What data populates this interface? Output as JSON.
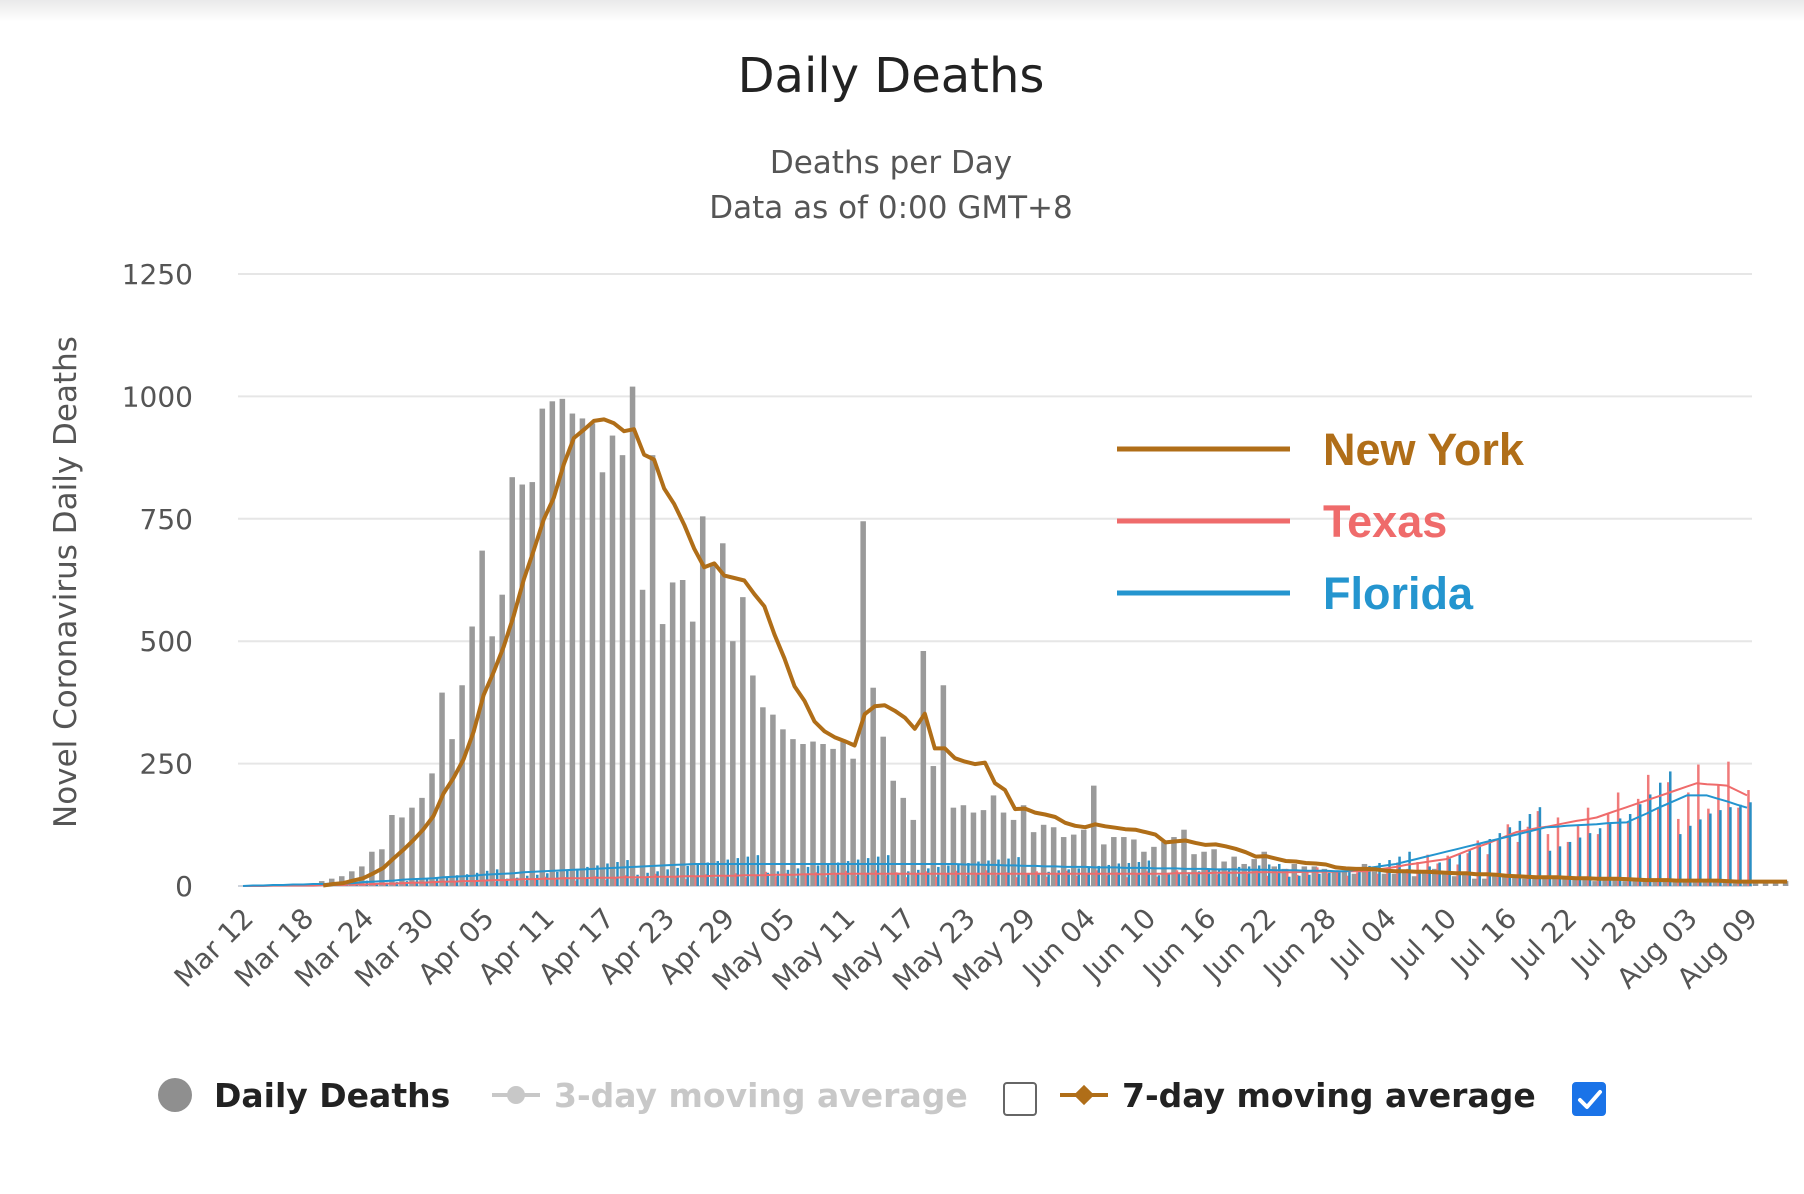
{
  "colors": {
    "bars_ny": "#9a9a9a",
    "bars_fl": "#2a8fc4",
    "bars_tx": "#f07a7a",
    "new_york": "#b06e18",
    "texas": "#ef6b6b",
    "florida": "#2495cf",
    "grid": "#e6e6e6",
    "disabled": "#c8c8c8"
  },
  "bottom_legend": {
    "daily_deaths": "Daily Deaths",
    "ma3": "3-day moving average",
    "ma7": "7-day moving average",
    "ma3_checked": false,
    "ma7_checked": true,
    "icons": {
      "daily_deaths": "circle-icon",
      "ma3": "line-circle-icon",
      "ma7": "line-diamond-icon",
      "checkbox": "checkbox-icon"
    }
  },
  "chart_data": {
    "type": "bar",
    "title": "Daily Deaths",
    "subtitle": [
      "Deaths per Day",
      "Data as of 0:00 GMT+8"
    ],
    "ylabel": "Novel Coronavirus Daily Deaths",
    "xlabel": "",
    "ylim": [
      0,
      1250
    ],
    "yticks": [
      0,
      250,
      500,
      750,
      1000,
      1250
    ],
    "grid": true,
    "x_start": "Mar 12",
    "x_tick_labels": [
      "Mar 12",
      "Mar 18",
      "Mar 24",
      "Mar 30",
      "Apr 05",
      "Apr 11",
      "Apr 17",
      "Apr 23",
      "Apr 29",
      "May 05",
      "May 11",
      "May 17",
      "May 23",
      "May 29",
      "Jun 04",
      "Jun 10",
      "Jun 16",
      "Jun 22",
      "Jun 28",
      "Jul 04",
      "Jul 10",
      "Jul 16",
      "Jul 22",
      "Jul 28",
      "Aug 03",
      "Aug 09"
    ],
    "legend_position": "right",
    "series": [
      {
        "name": "New York",
        "color": "#b06e18",
        "daily": [
          0,
          0,
          0,
          0,
          0,
          0,
          0,
          0,
          10,
          15,
          20,
          30,
          40,
          70,
          75,
          145,
          140,
          160,
          180,
          230,
          395,
          300,
          410,
          530,
          685,
          510,
          595,
          835,
          820,
          825,
          975,
          990,
          995,
          965,
          955,
          945,
          845,
          920,
          880,
          1020,
          605,
          880,
          535,
          620,
          625,
          540,
          755,
          660,
          700,
          500,
          590,
          430,
          365,
          350,
          320,
          300,
          290,
          295,
          290,
          280,
          295,
          260,
          745,
          405,
          305,
          215,
          180,
          135,
          480,
          245,
          410,
          160,
          165,
          150,
          155,
          185,
          150,
          135,
          165,
          110,
          125,
          120,
          100,
          105,
          115,
          205,
          85,
          100,
          100,
          95,
          70,
          80,
          90,
          100,
          115,
          65,
          70,
          75,
          50,
          60,
          45,
          55,
          70,
          40,
          35,
          45,
          40,
          40,
          35,
          30,
          30,
          25,
          45,
          30,
          25,
          25,
          30,
          20,
          30,
          35,
          25,
          20,
          25,
          15,
          15,
          25,
          20,
          20,
          15,
          15,
          15,
          15,
          20,
          15,
          15,
          10,
          15,
          15,
          10,
          10,
          10,
          15,
          10,
          10,
          10,
          10,
          10,
          10,
          10,
          5,
          10,
          5,
          10,
          10,
          10
        ],
        "avg7": [
          null,
          null,
          null,
          null,
          null,
          null,
          null,
          null,
          null,
          null,
          null,
          null,
          null,
          null,
          null,
          null,
          null,
          null,
          null,
          null,
          null,
          null,
          null,
          null,
          null,
          null,
          null,
          null,
          null,
          null,
          null,
          null,
          null,
          null,
          null,
          null,
          null,
          null,
          null,
          null,
          null,
          null,
          null,
          null,
          null,
          null,
          null,
          null,
          null,
          null,
          null,
          null,
          null,
          null,
          null,
          null,
          null,
          null,
          null,
          null,
          null,
          null,
          null,
          null,
          null,
          null,
          null,
          null,
          null,
          null,
          null,
          null,
          null,
          null,
          null,
          null,
          null,
          null,
          null,
          null,
          null,
          null,
          null,
          null,
          null,
          null,
          null,
          null,
          null,
          null,
          null,
          null,
          null,
          null,
          null,
          null,
          null,
          null,
          null,
          null,
          null,
          null,
          null,
          null,
          null,
          null,
          null,
          null,
          null,
          null,
          null,
          null,
          null,
          null,
          null,
          null,
          null,
          null,
          null,
          null,
          null,
          null,
          null,
          null,
          null,
          null,
          null,
          null,
          null,
          null,
          null,
          null,
          null,
          null,
          null,
          null,
          null,
          null,
          null,
          null,
          null,
          null,
          null,
          null,
          null,
          null,
          null,
          null,
          null,
          null,
          null
        ]
      },
      {
        "name": "Texas",
        "color": "#ef6b6b",
        "daily": [],
        "avg7": []
      },
      {
        "name": "Florida",
        "color": "#2495cf",
        "daily": [],
        "avg7": []
      }
    ]
  }
}
